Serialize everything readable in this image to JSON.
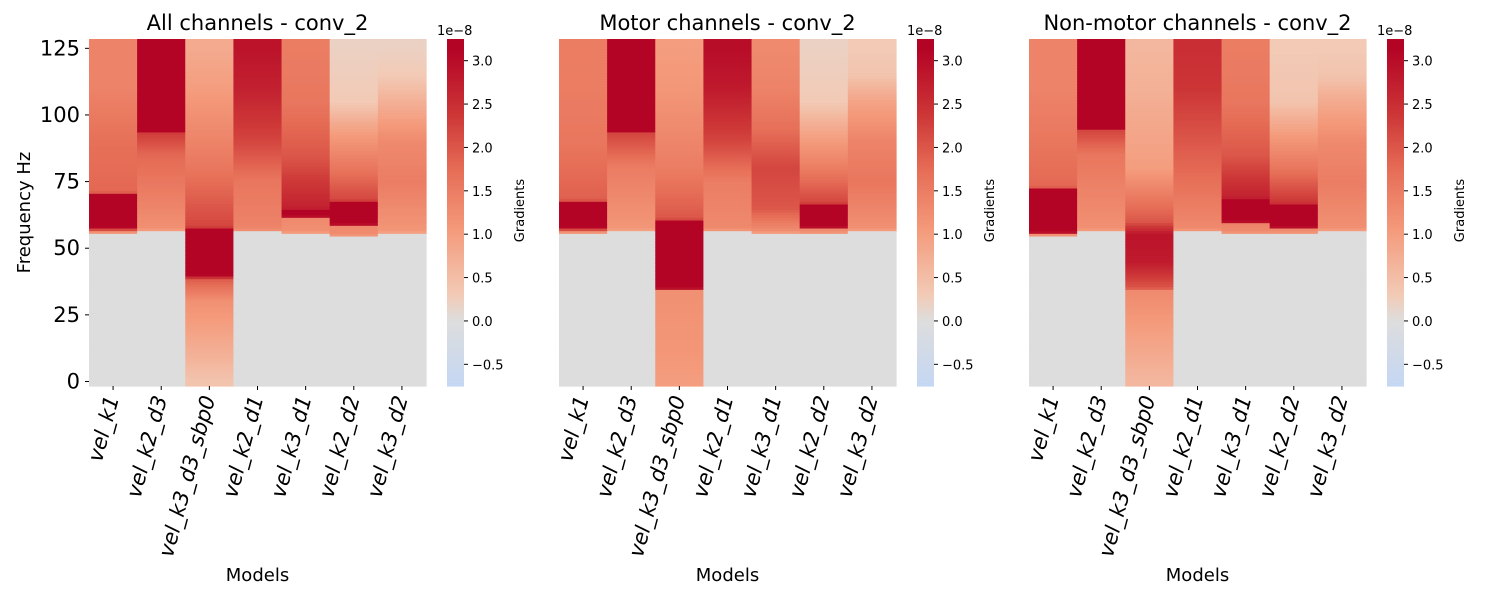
{
  "chart_data": [
    {
      "type": "heatmap",
      "title": "All channels - conv_2",
      "xlabel": "Models",
      "ylabel": "Frequency Hz",
      "categories": [
        "vel_k1",
        "vel_k2_d3",
        "vel_k3_d3_sbp0",
        "vel_k2_d1",
        "vel_k3_d1",
        "vel_k2_d2",
        "vel_k3_d2"
      ],
      "y_ticks": [
        "0",
        "25",
        "50",
        "75",
        "100",
        "125"
      ],
      "ylim": [
        0,
        125
      ],
      "colorbar": {
        "label": "Gradients",
        "offset_label": "1e−8",
        "ticks": [
          "−0.5",
          "0.0",
          "0.5",
          "1.0",
          "1.5",
          "2.0",
          "2.5",
          "3.0"
        ],
        "range": [
          -0.75,
          3.25
        ]
      },
      "colormap": "coolwarm",
      "series": [
        {
          "name": "vel_k1",
          "profile": [
            [
              0,
              0.0
            ],
            [
              55,
              0.0
            ],
            [
              56,
              1.3
            ],
            [
              58,
              3.2
            ],
            [
              70,
              3.2
            ],
            [
              71,
              1.8
            ],
            [
              90,
              1.7
            ],
            [
              110,
              1.4
            ],
            [
              125,
              1.4
            ]
          ]
        },
        {
          "name": "vel_k2_d3",
          "profile": [
            [
              0,
              0.0
            ],
            [
              56,
              0.0
            ],
            [
              57,
              1.2
            ],
            [
              85,
              1.8
            ],
            [
              93,
              2.3
            ],
            [
              94,
              3.25
            ],
            [
              125,
              3.25
            ]
          ]
        },
        {
          "name": "vel_k3_d3_sbp0",
          "profile": [
            [
              0,
              0.4
            ],
            [
              10,
              0.7
            ],
            [
              30,
              1.2
            ],
            [
              38,
              1.9
            ],
            [
              40,
              3.2
            ],
            [
              57,
              3.2
            ],
            [
              58,
              2.2
            ],
            [
              80,
              1.6
            ],
            [
              110,
              1.0
            ],
            [
              125,
              0.8
            ]
          ]
        },
        {
          "name": "vel_k2_d1",
          "profile": [
            [
              0,
              0.0
            ],
            [
              56,
              0.0
            ],
            [
              57,
              1.4
            ],
            [
              75,
              1.6
            ],
            [
              90,
              2.2
            ],
            [
              110,
              2.7
            ],
            [
              125,
              2.9
            ]
          ]
        },
        {
          "name": "vel_k3_d1",
          "profile": [
            [
              0,
              0.0
            ],
            [
              55,
              0.0
            ],
            [
              56,
              1.2
            ],
            [
              61,
              1.3
            ],
            [
              62,
              3.2
            ],
            [
              64,
              3.2
            ],
            [
              65,
              2.7
            ],
            [
              85,
              2.0
            ],
            [
              105,
              1.6
            ],
            [
              125,
              1.5
            ]
          ]
        },
        {
          "name": "vel_k2_d2",
          "profile": [
            [
              0,
              0.0
            ],
            [
              54,
              0.0
            ],
            [
              55,
              1.3
            ],
            [
              58,
              1.3
            ],
            [
              59,
              3.2
            ],
            [
              67,
              3.2
            ],
            [
              68,
              2.2
            ],
            [
              80,
              1.6
            ],
            [
              95,
              0.9
            ],
            [
              105,
              0.3
            ],
            [
              125,
              0.2
            ]
          ]
        },
        {
          "name": "vel_k3_d2",
          "profile": [
            [
              0,
              0.0
            ],
            [
              55,
              0.0
            ],
            [
              56,
              1.1
            ],
            [
              75,
              1.5
            ],
            [
              90,
              1.3
            ],
            [
              105,
              0.7
            ],
            [
              115,
              0.3
            ],
            [
              125,
              0.2
            ]
          ]
        }
      ]
    },
    {
      "type": "heatmap",
      "title": "Motor channels - conv_2",
      "xlabel": "Models",
      "ylabel": "",
      "categories": [
        "vel_k1",
        "vel_k2_d3",
        "vel_k3_d3_sbp0",
        "vel_k2_d1",
        "vel_k3_d1",
        "vel_k2_d2",
        "vel_k3_d2"
      ],
      "y_ticks": [],
      "ylim": [
        0,
        125
      ],
      "colorbar": {
        "label": "Gradients",
        "offset_label": "1e−8",
        "ticks": [
          "−0.5",
          "0.0",
          "0.5",
          "1.0",
          "1.5",
          "2.0",
          "2.5",
          "3.0"
        ],
        "range": [
          -0.75,
          3.25
        ]
      },
      "colormap": "coolwarm",
      "series": [
        {
          "name": "vel_k1",
          "profile": [
            [
              0,
              0.0
            ],
            [
              55,
              0.0
            ],
            [
              56,
              1.3
            ],
            [
              58,
              3.2
            ],
            [
              67,
              3.2
            ],
            [
              68,
              1.9
            ],
            [
              90,
              1.6
            ],
            [
              110,
              1.5
            ],
            [
              125,
              1.5
            ]
          ]
        },
        {
          "name": "vel_k2_d3",
          "profile": [
            [
              0,
              0.0
            ],
            [
              56,
              0.0
            ],
            [
              57,
              1.1
            ],
            [
              80,
              1.5
            ],
            [
              93,
              2.2
            ],
            [
              94,
              3.25
            ],
            [
              125,
              3.25
            ]
          ]
        },
        {
          "name": "vel_k3_d3_sbp0",
          "profile": [
            [
              0,
              1.0
            ],
            [
              10,
              1.1
            ],
            [
              34,
              1.2
            ],
            [
              35,
              3.25
            ],
            [
              60,
              3.25
            ],
            [
              61,
              2.0
            ],
            [
              80,
              1.5
            ],
            [
              110,
              1.1
            ],
            [
              125,
              1.0
            ]
          ]
        },
        {
          "name": "vel_k2_d1",
          "profile": [
            [
              0,
              0.0
            ],
            [
              56,
              0.0
            ],
            [
              57,
              1.3
            ],
            [
              75,
              1.5
            ],
            [
              90,
              2.2
            ],
            [
              110,
              2.8
            ],
            [
              125,
              3.0
            ]
          ]
        },
        {
          "name": "vel_k3_d1",
          "profile": [
            [
              0,
              0.0
            ],
            [
              55,
              0.0
            ],
            [
              56,
              1.2
            ],
            [
              65,
              2.0
            ],
            [
              80,
              2.2
            ],
            [
              95,
              1.7
            ],
            [
              110,
              1.4
            ],
            [
              125,
              1.3
            ]
          ]
        },
        {
          "name": "vel_k2_d2",
          "profile": [
            [
              0,
              0.0
            ],
            [
              55,
              0.0
            ],
            [
              56,
              1.3
            ],
            [
              57,
              1.3
            ],
            [
              58,
              3.2
            ],
            [
              66,
              3.2
            ],
            [
              67,
              2.2
            ],
            [
              80,
              1.5
            ],
            [
              95,
              0.8
            ],
            [
              105,
              0.3
            ],
            [
              125,
              0.2
            ]
          ]
        },
        {
          "name": "vel_k3_d2",
          "profile": [
            [
              0,
              0.0
            ],
            [
              56,
              0.0
            ],
            [
              57,
              1.2
            ],
            [
              75,
              1.6
            ],
            [
              90,
              1.4
            ],
            [
              105,
              0.9
            ],
            [
              115,
              0.4
            ],
            [
              125,
              0.3
            ]
          ]
        }
      ]
    },
    {
      "type": "heatmap",
      "title": "Non-motor channels - conv_2",
      "xlabel": "Models",
      "ylabel": "",
      "categories": [
        "vel_k1",
        "vel_k2_d3",
        "vel_k3_d3_sbp0",
        "vel_k2_d1",
        "vel_k3_d1",
        "vel_k2_d2",
        "vel_k3_d2"
      ],
      "y_ticks": [],
      "ylim": [
        0,
        125
      ],
      "colorbar": {
        "label": "Gradients",
        "offset_label": "1e−8",
        "ticks": [
          "−0.5",
          "0.0",
          "0.5",
          "1.0",
          "1.5",
          "2.0",
          "2.5",
          "3.0"
        ],
        "range": [
          -0.75,
          3.25
        ]
      },
      "colormap": "coolwarm",
      "series": [
        {
          "name": "vel_k1",
          "profile": [
            [
              0,
              0.0
            ],
            [
              54,
              0.0
            ],
            [
              55,
              1.3
            ],
            [
              56,
              3.2
            ],
            [
              72,
              3.2
            ],
            [
              73,
              1.8
            ],
            [
              90,
              1.6
            ],
            [
              110,
              1.4
            ],
            [
              125,
              1.4
            ]
          ]
        },
        {
          "name": "vel_k2_d3",
          "profile": [
            [
              0,
              0.0
            ],
            [
              56,
              0.0
            ],
            [
              57,
              1.2
            ],
            [
              85,
              1.6
            ],
            [
              94,
              2.2
            ],
            [
              95,
              3.25
            ],
            [
              125,
              3.25
            ]
          ]
        },
        {
          "name": "vel_k3_d3_sbp0",
          "profile": [
            [
              0,
              0.6
            ],
            [
              20,
              1.0
            ],
            [
              34,
              1.3
            ],
            [
              35,
              2.0
            ],
            [
              45,
              2.8
            ],
            [
              55,
              2.9
            ],
            [
              60,
              2.0
            ],
            [
              80,
              1.0
            ],
            [
              110,
              0.7
            ],
            [
              125,
              0.6
            ]
          ]
        },
        {
          "name": "vel_k2_d1",
          "profile": [
            [
              0,
              0.0
            ],
            [
              56,
              0.0
            ],
            [
              57,
              1.3
            ],
            [
              75,
              1.7
            ],
            [
              95,
              2.1
            ],
            [
              110,
              2.4
            ],
            [
              125,
              2.5
            ]
          ]
        },
        {
          "name": "vel_k3_d1",
          "profile": [
            [
              0,
              0.0
            ],
            [
              55,
              0.0
            ],
            [
              56,
              1.3
            ],
            [
              59,
              1.4
            ],
            [
              60,
              3.2
            ],
            [
              68,
              3.2
            ],
            [
              69,
              2.7
            ],
            [
              85,
              2.0
            ],
            [
              105,
              1.6
            ],
            [
              125,
              1.5
            ]
          ]
        },
        {
          "name": "vel_k2_d2",
          "profile": [
            [
              0,
              0.0
            ],
            [
              55,
              0.0
            ],
            [
              56,
              1.3
            ],
            [
              57,
              1.3
            ],
            [
              58,
              3.2
            ],
            [
              66,
              3.2
            ],
            [
              67,
              2.4
            ],
            [
              80,
              1.6
            ],
            [
              95,
              0.9
            ],
            [
              105,
              0.4
            ],
            [
              125,
              0.3
            ]
          ]
        },
        {
          "name": "vel_k3_d2",
          "profile": [
            [
              0,
              0.0
            ],
            [
              56,
              0.0
            ],
            [
              57,
              1.2
            ],
            [
              75,
              1.5
            ],
            [
              90,
              1.3
            ],
            [
              105,
              0.8
            ],
            [
              115,
              0.4
            ],
            [
              125,
              0.3
            ]
          ]
        }
      ]
    }
  ]
}
